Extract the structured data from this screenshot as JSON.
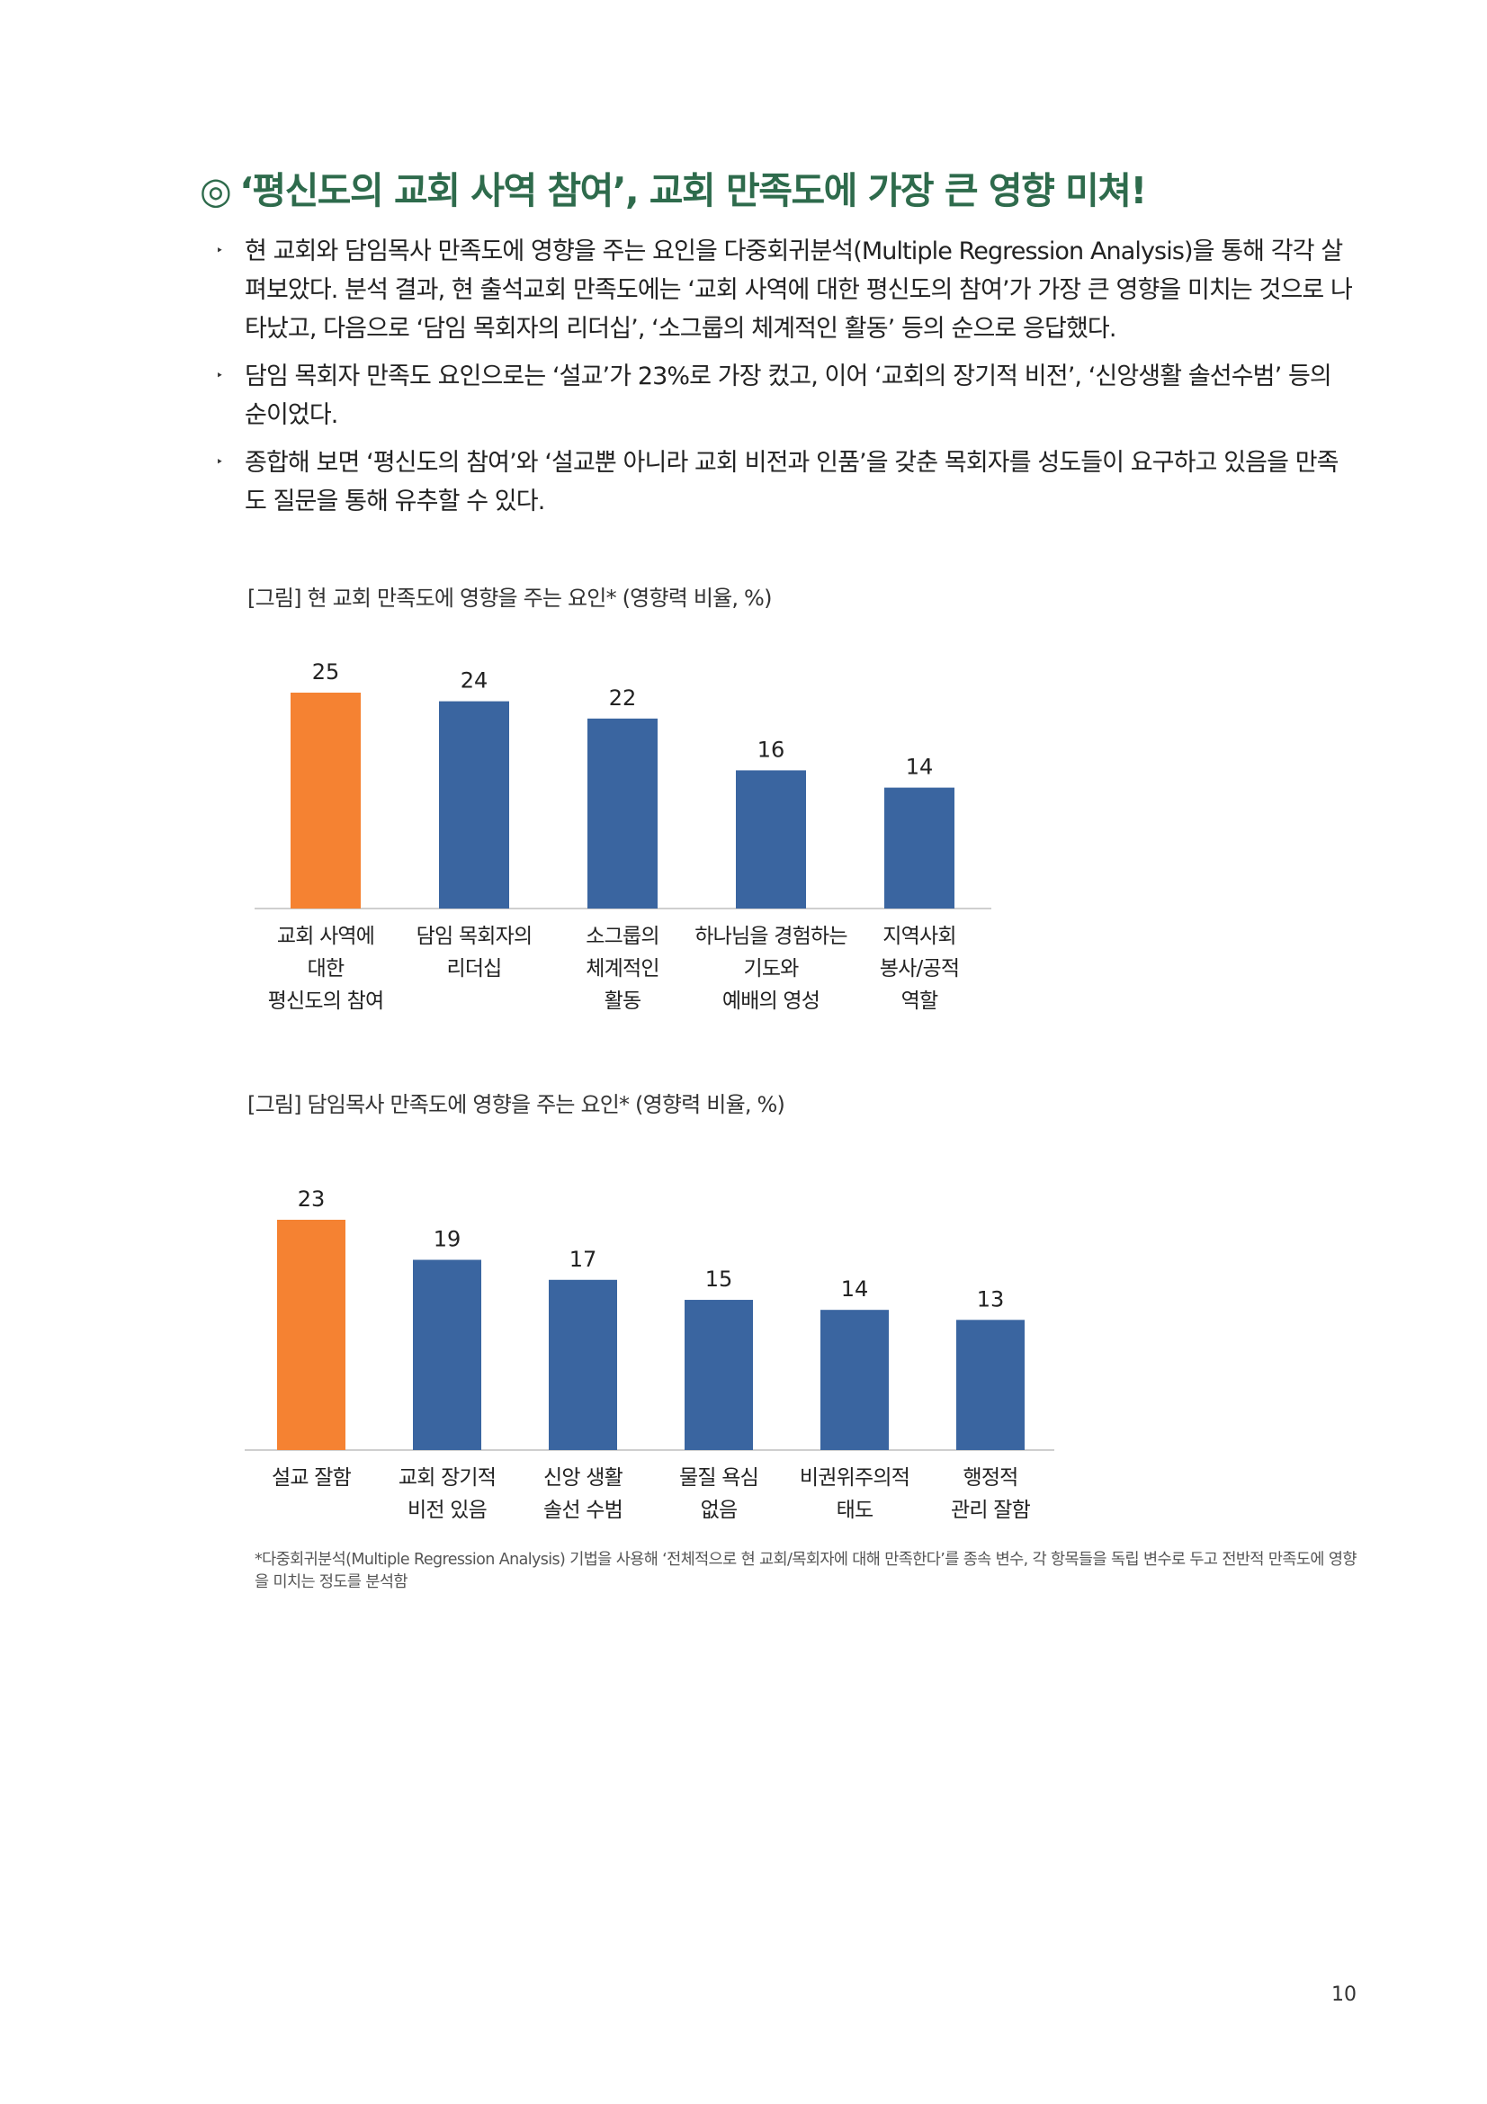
{
  "heading": {
    "mark": "◎",
    "text": "‘평신도의 교회 사역 참여’, 교회 만족도에 가장 큰 영향 미쳐!"
  },
  "bullets": [
    "현 교회와 담임목사 만족도에 영향을 주는 요인을 다중회귀분석(Multiple Regression Analysis)을 통해 각각 살펴보았다. 분석 결과, 현 출석교회 만족도에는 ‘교회 사역에 대한 평신도의 참여’가 가장 큰 영향을 미치는 것으로 나타났고, 다음으로 ‘담임 목회자의 리더십’, ‘소그룹의 체계적인 활동’ 등의 순으로 응답했다.",
    "담임 목회자 만족도 요인으로는 ‘설교’가 23%로 가장 컸고, 이어 ‘교회의 장기적 비전’, ‘신앙생활 솔선수범’ 등의 순이었다.",
    "종합해 보면 ‘평신도의 참여’와 ‘설교뿐 아니라 교회 비전과 인품’을 갖춘 목회자를 성도들이 요구하고 있음을 만족도 질문을 통해 유추할 수 있다."
  ],
  "bullet_marker": "‣",
  "chart_data": [
    {
      "type": "bar",
      "title": "[그림] 현 교회 만족도에 영향을 주는 요인* (영향력 비율, %)",
      "categories": [
        [
          "교회 사역에",
          "대한",
          "평신도의 참여"
        ],
        [
          "담임 목회자의",
          "리더십"
        ],
        [
          "소그룹의",
          "체계적인",
          "활동"
        ],
        [
          "하나님을 경험하는",
          "기도와",
          "예배의 영성"
        ],
        [
          "지역사회",
          "봉사/공적",
          "역할"
        ]
      ],
      "values": [
        25,
        24,
        22,
        16,
        14
      ],
      "highlight_index": 0,
      "colors": {
        "highlight": "#f58232",
        "default": "#3a65a0",
        "axis": "#bfbfbf"
      },
      "ylim": [
        0,
        25
      ]
    },
    {
      "type": "bar",
      "title": "[그림] 담임목사 만족도에 영향을 주는 요인* (영향력 비율, %)",
      "categories": [
        [
          "설교 잘함"
        ],
        [
          "교회 장기적",
          "비전 있음"
        ],
        [
          "신앙 생활",
          "솔선 수범"
        ],
        [
          "물질 욕심",
          "없음"
        ],
        [
          "비권위주의적",
          "태도"
        ],
        [
          "행정적",
          "관리 잘함"
        ]
      ],
      "values": [
        23,
        19,
        17,
        15,
        14,
        13
      ],
      "highlight_index": 0,
      "colors": {
        "highlight": "#f58232",
        "default": "#3a65a0",
        "axis": "#bfbfbf"
      },
      "ylim": [
        0,
        23
      ]
    }
  ],
  "footnote": "*다중회귀분석(Multiple Regression Analysis) 기법을 사용해 ‘전체적으로 현 교회/목회자에 대해 만족한다’를 종속 변수, 각 항목들을 독립 변수로 두고 전반적 만족도에 영향을 미치는 정도를 분석함",
  "page_number": "10"
}
